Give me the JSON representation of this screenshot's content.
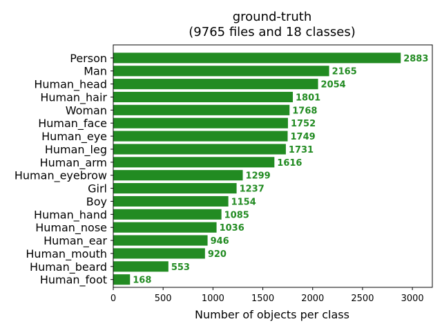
{
  "chart_data": {
    "type": "bar",
    "orientation": "horizontal",
    "title": "ground-truth",
    "subtitle": "(9765 files and 18 classes)",
    "xlabel": "Number of objects per class",
    "ylabel": "",
    "xlim": [
      0,
      3200
    ],
    "xticks": [
      0,
      500,
      1000,
      1500,
      2000,
      2500,
      3000
    ],
    "xtick_labels": [
      "0",
      "500",
      "1000",
      "1500",
      "2000",
      "2500",
      "3000"
    ],
    "grid": false,
    "legend": "none",
    "bar_color": "#228b22",
    "label_color": "#228b22",
    "categories": [
      "Person",
      "Man",
      "Human_head",
      "Human_hair",
      "Woman",
      "Human_face",
      "Human_eye",
      "Human_leg",
      "Human_arm",
      "Human_eyebrow",
      "Girl",
      "Boy",
      "Human_hand",
      "Human_nose",
      "Human_ear",
      "Human_mouth",
      "Human_beard",
      "Human_foot"
    ],
    "values": [
      2883,
      2165,
      2054,
      1801,
      1768,
      1752,
      1749,
      1731,
      1616,
      1299,
      1237,
      1154,
      1085,
      1036,
      946,
      920,
      553,
      168
    ],
    "value_labels": [
      "2883",
      "2165",
      "2054",
      "1801",
      "1768",
      "1752",
      "1749",
      "1731",
      "1616",
      "1299",
      "1237",
      "1154",
      "1085",
      "1036",
      "946",
      "920",
      "553",
      "168"
    ]
  }
}
